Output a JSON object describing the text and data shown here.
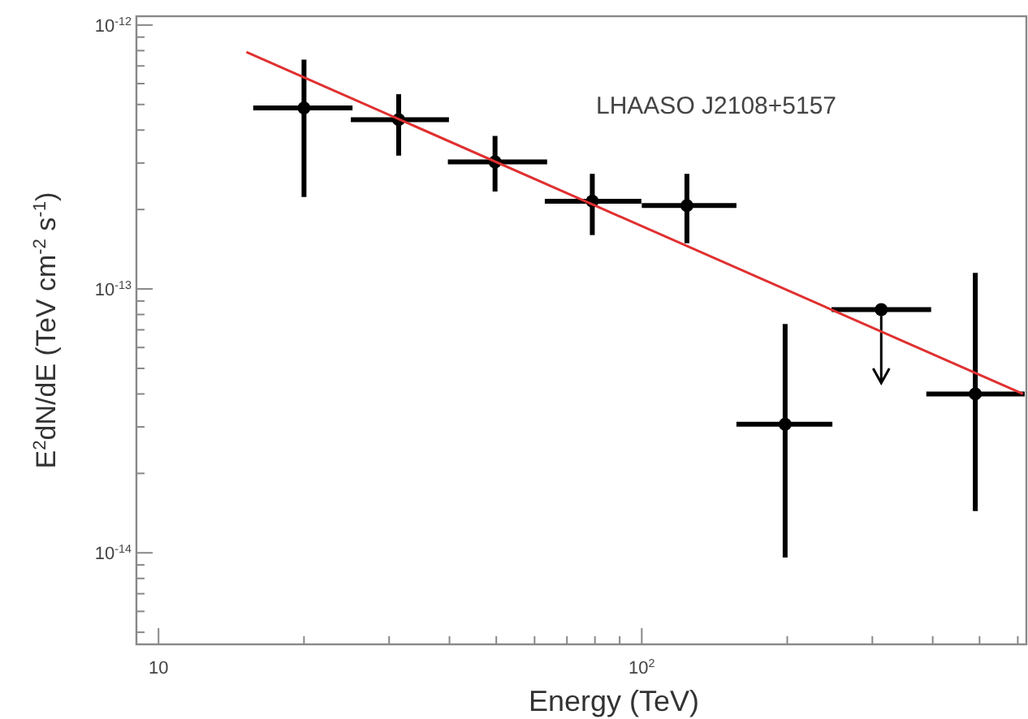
{
  "chart_data": {
    "type": "scatter",
    "xlabel": "Energy (TeV)",
    "ylabel": "E$^{2}$dN/dE (TeV cm$^{-2}$ s$^{-1}$)",
    "annotations": [
      "LHAASO J2108+5157"
    ],
    "log": "xy",
    "grid": false,
    "marker": "circle",
    "xlim": [
      9,
      625
    ],
    "ylim": [
      4.5e-15,
      1.08e-12
    ],
    "xticks": [
      10,
      {
        "value": 20,
        "label": null
      },
      {
        "value": 30,
        "label": null
      },
      {
        "value": 40,
        "label": null
      },
      {
        "value": 50,
        "label": null
      },
      {
        "value": 60,
        "label": null
      },
      {
        "value": 70,
        "label": null
      },
      {
        "value": 80,
        "label": null
      },
      {
        "value": 90,
        "label": null
      },
      {
        "value": 100,
        "label": "10$^{2}$"
      },
      {
        "value": 200,
        "label": null
      },
      {
        "value": 300,
        "label": null
      },
      {
        "value": 400,
        "label": null
      },
      {
        "value": 500,
        "label": null
      },
      {
        "value": 600,
        "label": null
      }
    ],
    "yticks": [
      {
        "value": 5e-15,
        "label": null
      },
      {
        "value": 6e-15,
        "label": null
      },
      {
        "value": 7e-15,
        "label": null
      },
      {
        "value": 8e-15,
        "label": null
      },
      {
        "value": 9e-15,
        "label": null
      },
      {
        "value": 1e-14,
        "label": "10$^{-14}$"
      },
      {
        "value": 2e-14,
        "label": null
      },
      {
        "value": 3e-14,
        "label": null
      },
      {
        "value": 4e-14,
        "label": null
      },
      {
        "value": 5e-14,
        "label": null
      },
      {
        "value": 6e-14,
        "label": null
      },
      {
        "value": 7e-14,
        "label": null
      },
      {
        "value": 8e-14,
        "label": null
      },
      {
        "value": 9e-14,
        "label": null
      },
      {
        "value": 1e-13,
        "label": "10$^{-13}$"
      },
      {
        "value": 2e-13,
        "label": null
      },
      {
        "value": 3e-13,
        "label": null
      },
      {
        "value": 4e-13,
        "label": null
      },
      {
        "value": 5e-13,
        "label": null
      },
      {
        "value": 6e-13,
        "label": null
      },
      {
        "value": 7e-13,
        "label": null
      },
      {
        "value": 8e-13,
        "label": null
      },
      {
        "value": 9e-13,
        "label": null
      },
      {
        "value": 1e-12,
        "label": "10$^{-12}$"
      }
    ],
    "series": [
      {
        "color": "#000000",
        "x": [
          20,
          31.4,
          49.7,
          79,
          124,
          198,
          490
        ],
        "values": [
          4.85e-13,
          4.38e-13,
          3.03e-13,
          2.15e-13,
          2.07e-13,
          3.07e-14,
          4e-14
        ],
        "errors": [
          [
            2.23e-13,
            7.4e-13
          ],
          [
            3.2e-13,
            5.47e-13
          ],
          [
            2.34e-13,
            3.8e-13
          ],
          [
            1.6e-13,
            2.73e-13
          ],
          [
            1.49e-13,
            2.73e-13
          ],
          [
            9.6e-15,
            7.36e-14
          ],
          [
            1.44e-14,
            1.15e-13
          ]
        ],
        "xerrors": [
          [
            15.7,
            25.2
          ],
          [
            25,
            39.9
          ],
          [
            39.7,
            63.7
          ],
          [
            63,
            99.8
          ],
          [
            100,
            157
          ],
          [
            157,
            248
          ],
          [
            388,
            620
          ]
        ]
      },
      {
        "color": "#000000",
        "x": [
          313
        ],
        "values": [
          8.35e-14
        ],
        "errors": [
          [
            4.4e-14,
            8.35e-14
          ]
        ],
        "xerrors": [
          [
            247,
            397
          ]
        ]
      },
      {
        "type": "line",
        "color": "#e03030",
        "x": [
          15.2,
          615
        ],
        "values": [
          7.9e-13,
          4e-14
        ],
        "line_style": "solid",
        "marker": "none"
      }
    ]
  }
}
